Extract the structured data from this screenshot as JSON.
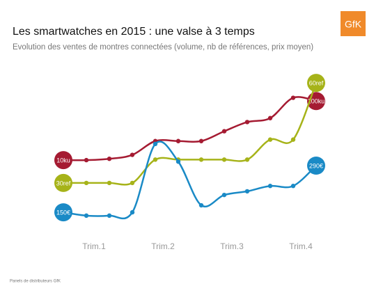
{
  "chart_data": {
    "type": "line",
    "title": "Les smartwatches en 2015 : une valse à 3 temps",
    "subtitle": "Evolution des ventes de montres connectées (volume, nb de références, prix moyen)",
    "footnote": "Panels de distributeurs GfK",
    "logo": "GfK",
    "categories": [
      null,
      "Trim.1",
      null,
      null,
      "Trim.2",
      null,
      null,
      "Trim.3",
      null,
      null,
      "Trim.4",
      null
    ],
    "series": [
      {
        "name": "ku",
        "color": "#a51b32",
        "ylim": [
          -96,
          148
        ],
        "values": [
          10,
          10,
          12,
          18,
          39,
          39,
          39,
          54,
          68,
          74,
          105,
          100
        ],
        "value_labels": [
          "10ku",
          null,
          null,
          null,
          null,
          null,
          null,
          null,
          null,
          null,
          null,
          "100ku"
        ]
      },
      {
        "name": "ref",
        "color": "#a6b319",
        "ylim": [
          16,
          64
        ],
        "values": [
          30,
          30,
          30,
          30,
          37,
          37,
          37,
          37,
          37,
          43,
          43,
          60
        ],
        "value_labels": [
          "30ref",
          null,
          null,
          null,
          null,
          null,
          null,
          null,
          null,
          null,
          null,
          "60ref"
        ]
      },
      {
        "name": "€",
        "color": "#1a8ac6",
        "ylim": [
          98,
          578
        ],
        "values": [
          150,
          140,
          140,
          150,
          355,
          302,
          171,
          202,
          213,
          229,
          229,
          290
        ],
        "value_labels": [
          "150€",
          null,
          null,
          null,
          null,
          null,
          null,
          null,
          null,
          null,
          null,
          "290€"
        ]
      }
    ]
  }
}
